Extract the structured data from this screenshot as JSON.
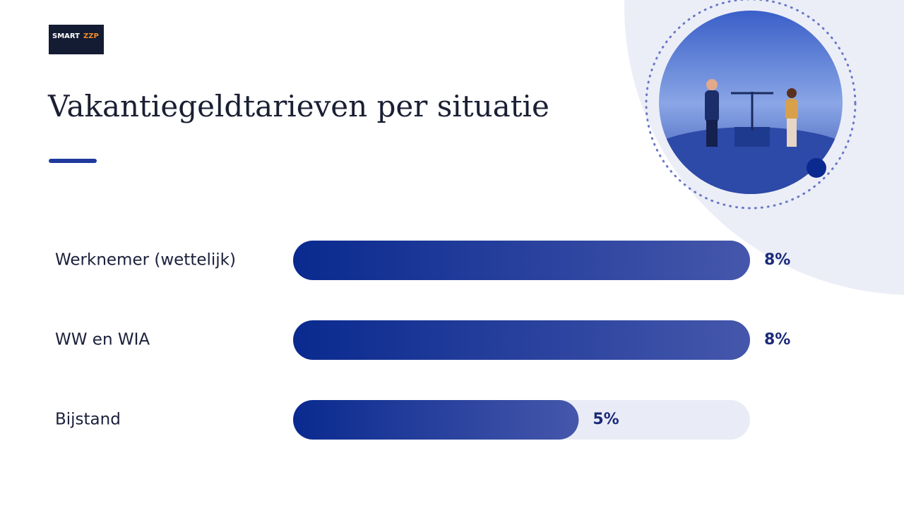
{
  "logo": {
    "left": "SMART",
    "right": "ZZP"
  },
  "chart_data": {
    "type": "bar",
    "orientation": "horizontal",
    "title": "Vakantiegeldtarieven per situatie",
    "categories": [
      "Werknemer (wettelijk)",
      "WW en WIA",
      "Bijstand"
    ],
    "values": [
      8,
      8,
      5
    ],
    "value_labels": [
      "8%",
      "8%",
      "5%"
    ],
    "xlim": [
      0,
      8
    ],
    "color_start": "#0a2a8f",
    "color_end": "#4557ab",
    "track_color": "#e9ecf6"
  }
}
